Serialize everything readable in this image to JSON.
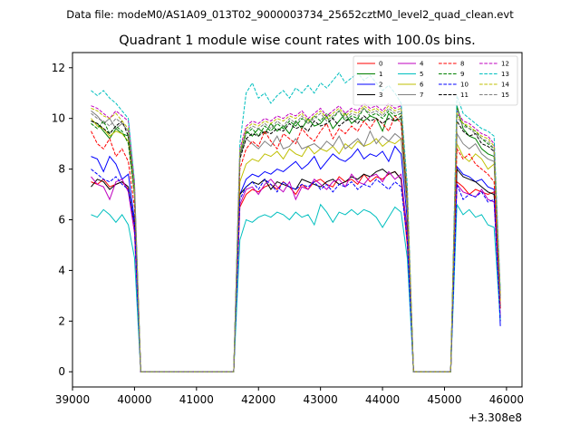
{
  "suptitle": "Data file: modeM0/AS1A09_013T02_9000003734_25652cztM0_level2_quad_clean.evt",
  "chart_data": {
    "type": "line",
    "title": "Quadrant 1 module wise count rates with 100.0s bins.",
    "xlabel": "",
    "ylabel": "",
    "x_offset_label": "+3.308e8",
    "xlim": [
      39000,
      46250
    ],
    "ylim": [
      -0.6,
      12.6
    ],
    "x_ticks": [
      39000,
      40000,
      41000,
      42000,
      43000,
      44000,
      45000,
      46000
    ],
    "y_ticks": [
      0,
      2,
      4,
      6,
      8,
      10,
      12
    ],
    "grid": false,
    "legend": "top-right",
    "legend_columns": 4,
    "x": [
      39300,
      39400,
      39500,
      39600,
      39700,
      39800,
      39900,
      40000,
      40100,
      40200,
      40300,
      40400,
      40500,
      40600,
      40700,
      40800,
      40900,
      41000,
      41100,
      41200,
      41300,
      41400,
      41500,
      41600,
      41700,
      41800,
      41900,
      42000,
      42100,
      42200,
      42300,
      42400,
      42500,
      42600,
      42700,
      42800,
      42900,
      43000,
      43100,
      43200,
      43300,
      43400,
      43500,
      43600,
      43700,
      43800,
      43900,
      44000,
      44100,
      44200,
      44300,
      44400,
      44500,
      44600,
      44700,
      44800,
      44900,
      45000,
      45100,
      45200,
      45300,
      45400,
      45500,
      45600,
      45700,
      45800,
      45900
    ],
    "series": [
      {
        "name": "0",
        "color": "#ff0000",
        "dash": "solid",
        "values": [
          7.5,
          7.4,
          7.6,
          7.3,
          7.4,
          7.5,
          7.2,
          5.5,
          0,
          0,
          0,
          0,
          0,
          0,
          0,
          0,
          0,
          0,
          0,
          0,
          0,
          0,
          0,
          0,
          6.5,
          7.0,
          7.2,
          7.1,
          7.3,
          7.4,
          7.2,
          7.5,
          7.3,
          7.0,
          7.4,
          7.2,
          7.5,
          7.6,
          7.4,
          7.3,
          7.7,
          7.5,
          7.6,
          7.4,
          7.8,
          7.5,
          7.7,
          7.6,
          7.8,
          7.9,
          7.6,
          5.0,
          0,
          0,
          0,
          0,
          0,
          0,
          0,
          7.5,
          7.3,
          7.0,
          7.2,
          7.1,
          7.0,
          7.1,
          2.0
        ]
      },
      {
        "name": "1",
        "color": "#008000",
        "dash": "solid",
        "values": [
          9.9,
          9.8,
          9.5,
          9.2,
          9.6,
          9.4,
          9.3,
          7.0,
          0,
          0,
          0,
          0,
          0,
          0,
          0,
          0,
          0,
          0,
          0,
          0,
          0,
          0,
          0,
          0,
          8.5,
          9.5,
          9.3,
          9.6,
          9.4,
          9.8,
          9.5,
          9.7,
          9.4,
          9.9,
          9.6,
          10.0,
          9.7,
          9.8,
          10.1,
          9.6,
          9.9,
          10.2,
          9.8,
          10.0,
          9.9,
          10.1,
          10.0,
          9.5,
          10.2,
          9.9,
          10.0,
          6.5,
          0,
          0,
          0,
          0,
          0,
          0,
          0,
          10.5,
          9.6,
          9.3,
          9.2,
          8.8,
          8.6,
          8.5,
          3.0
        ]
      },
      {
        "name": "2",
        "color": "#0000ff",
        "dash": "solid",
        "values": [
          8.5,
          8.4,
          7.9,
          8.5,
          8.2,
          7.6,
          7.8,
          6.0,
          0,
          0,
          0,
          0,
          0,
          0,
          0,
          0,
          0,
          0,
          0,
          0,
          0,
          0,
          0,
          0,
          7.0,
          7.6,
          7.8,
          7.7,
          7.9,
          7.8,
          8.0,
          7.9,
          8.1,
          8.3,
          8.0,
          8.2,
          8.5,
          8.0,
          8.3,
          8.6,
          8.4,
          8.3,
          8.5,
          8.8,
          8.4,
          8.6,
          8.5,
          8.7,
          8.3,
          8.9,
          8.6,
          6.0,
          0,
          0,
          0,
          0,
          0,
          0,
          0,
          8.1,
          7.8,
          7.7,
          7.5,
          7.6,
          7.3,
          7.2,
          1.8
        ]
      },
      {
        "name": "3",
        "color": "#000000",
        "dash": "solid",
        "values": [
          7.3,
          7.6,
          7.5,
          7.2,
          7.4,
          7.5,
          7.3,
          5.8,
          0,
          0,
          0,
          0,
          0,
          0,
          0,
          0,
          0,
          0,
          0,
          0,
          0,
          0,
          0,
          0,
          7.0,
          7.3,
          7.5,
          7.4,
          7.6,
          7.2,
          7.5,
          7.4,
          7.3,
          7.2,
          7.6,
          7.5,
          7.4,
          7.3,
          7.5,
          7.6,
          7.4,
          7.5,
          7.7,
          7.6,
          7.8,
          7.7,
          7.9,
          8.0,
          7.8,
          7.9,
          7.6,
          5.6,
          0,
          0,
          0,
          0,
          0,
          0,
          0,
          8.0,
          7.7,
          7.6,
          7.5,
          7.3,
          7.1,
          7.0,
          2.5
        ]
      },
      {
        "name": "4",
        "color": "#bf00bf",
        "dash": "solid",
        "values": [
          7.7,
          7.4,
          7.3,
          6.8,
          7.5,
          7.6,
          7.1,
          5.5,
          0,
          0,
          0,
          0,
          0,
          0,
          0,
          0,
          0,
          0,
          0,
          0,
          0,
          0,
          0,
          0,
          6.6,
          7.2,
          7.3,
          7.0,
          7.4,
          7.6,
          7.3,
          7.1,
          7.5,
          6.8,
          7.3,
          7.2,
          7.6,
          7.4,
          7.2,
          7.5,
          7.6,
          7.3,
          7.8,
          7.5,
          7.4,
          7.7,
          7.8,
          7.5,
          7.9,
          7.6,
          7.8,
          5.4,
          0,
          0,
          0,
          0,
          0,
          0,
          0,
          7.4,
          7.1,
          7.0,
          6.9,
          7.2,
          6.8,
          6.7,
          2.2
        ]
      },
      {
        "name": "5",
        "color": "#00bfbf",
        "dash": "solid",
        "values": [
          6.2,
          6.1,
          6.4,
          6.2,
          5.9,
          6.2,
          5.8,
          4.5,
          0,
          0,
          0,
          0,
          0,
          0,
          0,
          0,
          0,
          0,
          0,
          0,
          0,
          0,
          0,
          0,
          5.2,
          6.0,
          5.9,
          6.1,
          6.2,
          6.1,
          6.3,
          6.2,
          6.0,
          6.3,
          6.1,
          6.2,
          5.8,
          6.6,
          6.3,
          5.9,
          6.3,
          6.2,
          6.4,
          6.2,
          6.4,
          6.3,
          6.1,
          5.7,
          6.1,
          6.5,
          6.3,
          4.5,
          0,
          0,
          0,
          0,
          0,
          0,
          0,
          6.6,
          6.2,
          6.4,
          6.1,
          6.2,
          5.8,
          5.7,
          2.0
        ]
      },
      {
        "name": "6",
        "color": "#bfbf00",
        "dash": "solid",
        "values": [
          10.0,
          9.7,
          9.6,
          9.3,
          9.5,
          9.4,
          9.1,
          7.0,
          0,
          0,
          0,
          0,
          0,
          0,
          0,
          0,
          0,
          0,
          0,
          0,
          0,
          0,
          0,
          0,
          7.5,
          8.2,
          8.4,
          8.3,
          8.6,
          8.5,
          8.7,
          8.4,
          8.8,
          8.6,
          8.5,
          8.9,
          8.6,
          8.8,
          8.7,
          8.9,
          8.6,
          9.0,
          8.8,
          9.1,
          8.9,
          9.0,
          9.2,
          8.9,
          9.1,
          9.0,
          9.2,
          6.4,
          0,
          0,
          0,
          0,
          0,
          0,
          0,
          9.0,
          8.5,
          8.3,
          8.6,
          8.4,
          8.0,
          8.2,
          2.8
        ]
      },
      {
        "name": "7",
        "color": "#808080",
        "dash": "solid",
        "values": [
          10.3,
          10.1,
          9.8,
          10.0,
          9.6,
          9.8,
          9.5,
          7.2,
          0,
          0,
          0,
          0,
          0,
          0,
          0,
          0,
          0,
          0,
          0,
          0,
          0,
          0,
          0,
          0,
          8.5,
          9.2,
          9.0,
          8.8,
          9.1,
          8.9,
          9.3,
          8.8,
          8.9,
          9.2,
          8.8,
          8.9,
          9.0,
          8.8,
          9.1,
          8.9,
          9.3,
          8.8,
          9.0,
          9.2,
          8.9,
          9.5,
          9.0,
          9.3,
          9.1,
          9.4,
          9.2,
          6.5,
          0,
          0,
          0,
          0,
          0,
          0,
          0,
          9.4,
          9.0,
          8.8,
          9.0,
          8.6,
          8.4,
          8.3,
          2.9
        ]
      },
      {
        "name": "8",
        "color": "#ff0000",
        "dash": "dashed",
        "values": [
          9.5,
          9.0,
          8.8,
          9.2,
          8.5,
          8.8,
          8.3,
          6.5,
          0,
          0,
          0,
          0,
          0,
          0,
          0,
          0,
          0,
          0,
          0,
          0,
          0,
          0,
          0,
          0,
          8.0,
          8.8,
          9.1,
          8.9,
          9.5,
          9.1,
          8.8,
          9.4,
          9.2,
          9.0,
          9.6,
          9.3,
          9.1,
          9.5,
          9.8,
          9.2,
          9.6,
          9.4,
          9.7,
          9.5,
          9.9,
          9.6,
          10.0,
          9.8,
          9.5,
          10.1,
          9.8,
          6.8,
          0,
          0,
          0,
          0,
          0,
          0,
          0,
          8.8,
          8.4,
          8.6,
          8.2,
          8.0,
          7.8,
          7.5,
          2.5
        ]
      },
      {
        "name": "9",
        "color": "#008000",
        "dash": "dashed",
        "values": [
          9.8,
          9.6,
          9.9,
          9.4,
          9.7,
          9.5,
          9.0,
          7.0,
          0,
          0,
          0,
          0,
          0,
          0,
          0,
          0,
          0,
          0,
          0,
          0,
          0,
          0,
          0,
          0,
          8.6,
          9.4,
          9.6,
          9.3,
          9.7,
          9.5,
          9.8,
          9.6,
          9.9,
          9.7,
          10.0,
          9.8,
          10.1,
          9.9,
          10.2,
          10.0,
          10.3,
          9.9,
          10.1,
          10.0,
          10.4,
          10.1,
          10.2,
          10.0,
          10.3,
          10.1,
          10.2,
          7.0,
          0,
          0,
          0,
          0,
          0,
          0,
          0,
          10.2,
          9.8,
          9.6,
          9.5,
          9.2,
          9.0,
          8.8,
          3.0
        ]
      },
      {
        "name": "10",
        "color": "#0000ff",
        "dash": "dashed",
        "values": [
          8.0,
          7.8,
          7.6,
          7.5,
          7.7,
          7.4,
          7.2,
          5.8,
          0,
          0,
          0,
          0,
          0,
          0,
          0,
          0,
          0,
          0,
          0,
          0,
          0,
          0,
          0,
          0,
          6.8,
          7.3,
          7.5,
          7.2,
          7.6,
          7.4,
          7.1,
          7.5,
          7.3,
          7.2,
          7.4,
          7.3,
          7.5,
          7.2,
          7.4,
          7.1,
          7.4,
          7.3,
          7.5,
          7.2,
          7.4,
          7.3,
          7.6,
          7.4,
          7.2,
          7.5,
          7.3,
          5.2,
          0,
          0,
          0,
          0,
          0,
          0,
          0,
          7.4,
          6.8,
          7.0,
          6.9,
          7.1,
          6.7,
          6.8,
          2.0
        ]
      },
      {
        "name": "11",
        "color": "#000000",
        "dash": "dashed",
        "values": [
          9.9,
          9.8,
          9.6,
          9.4,
          9.7,
          9.9,
          9.3,
          7.2,
          0,
          0,
          0,
          0,
          0,
          0,
          0,
          0,
          0,
          0,
          0,
          0,
          0,
          0,
          0,
          0,
          8.4,
          9.2,
          9.4,
          9.3,
          9.5,
          9.4,
          9.6,
          9.5,
          9.8,
          9.6,
          9.7,
          9.5,
          9.9,
          9.7,
          9.8,
          10.0,
          9.7,
          9.9,
          10.0,
          9.8,
          10.1,
          9.9,
          10.0,
          9.8,
          10.0,
          9.9,
          10.1,
          6.9,
          0,
          0,
          0,
          0,
          0,
          0,
          0,
          9.9,
          9.5,
          9.3,
          9.4,
          9.0,
          8.9,
          8.7,
          3.0
        ]
      },
      {
        "name": "12",
        "color": "#bf00bf",
        "dash": "dashed",
        "values": [
          10.5,
          10.4,
          10.2,
          10.0,
          10.3,
          10.1,
          9.9,
          7.5,
          0,
          0,
          0,
          0,
          0,
          0,
          0,
          0,
          0,
          0,
          0,
          0,
          0,
          0,
          0,
          0,
          8.8,
          9.7,
          9.9,
          9.8,
          10.0,
          9.9,
          10.1,
          10.0,
          10.2,
          10.1,
          10.3,
          10.0,
          10.2,
          10.4,
          10.1,
          10.3,
          10.5,
          10.2,
          10.4,
          10.3,
          10.6,
          10.4,
          10.5,
          10.3,
          10.6,
          10.4,
          10.5,
          7.2,
          0,
          0,
          0,
          0,
          0,
          0,
          0,
          10.3,
          9.9,
          9.8,
          9.6,
          9.4,
          9.3,
          9.0,
          3.1
        ]
      },
      {
        "name": "13",
        "color": "#00bfbf",
        "dash": "dashed",
        "values": [
          11.1,
          10.9,
          11.1,
          10.8,
          10.6,
          10.3,
          10.0,
          7.5,
          0,
          0,
          0,
          0,
          0,
          0,
          0,
          0,
          0,
          0,
          0,
          0,
          0,
          0,
          0,
          0,
          9.0,
          11.0,
          11.4,
          10.8,
          11.0,
          10.6,
          10.9,
          11.1,
          10.8,
          11.2,
          11.0,
          11.3,
          11.0,
          11.4,
          11.2,
          11.5,
          11.8,
          11.4,
          11.6,
          11.8,
          11.5,
          11.7,
          11.4,
          11.1,
          11.3,
          11.0,
          10.6,
          7.4,
          0,
          0,
          0,
          0,
          0,
          0,
          0,
          10.9,
          10.2,
          10.0,
          9.8,
          9.6,
          9.5,
          9.3,
          3.2
        ]
      },
      {
        "name": "14",
        "color": "#bfbf00",
        "dash": "dashed",
        "values": [
          10.4,
          10.3,
          10.1,
          10.0,
          10.2,
          9.9,
          9.6,
          7.3,
          0,
          0,
          0,
          0,
          0,
          0,
          0,
          0,
          0,
          0,
          0,
          0,
          0,
          0,
          0,
          0,
          8.7,
          9.6,
          9.8,
          9.7,
          9.9,
          9.8,
          10.0,
          9.9,
          10.1,
          10.0,
          10.2,
          9.9,
          10.1,
          10.3,
          10.0,
          10.2,
          10.4,
          10.1,
          10.3,
          10.2,
          10.5,
          10.3,
          10.4,
          10.2,
          10.5,
          10.3,
          10.4,
          7.1,
          0,
          0,
          0,
          0,
          0,
          0,
          0,
          10.2,
          9.8,
          9.7,
          9.5,
          9.3,
          9.2,
          8.9,
          3.0
        ]
      },
      {
        "name": "15",
        "color": "#808080",
        "dash": "dashed",
        "values": [
          10.2,
          10.0,
          9.9,
          9.7,
          10.0,
          9.8,
          9.5,
          7.2,
          0,
          0,
          0,
          0,
          0,
          0,
          0,
          0,
          0,
          0,
          0,
          0,
          0,
          0,
          0,
          0,
          8.6,
          9.5,
          9.7,
          9.6,
          9.8,
          9.6,
          9.9,
          9.7,
          10.0,
          9.8,
          10.1,
          9.8,
          10.0,
          10.2,
          9.9,
          10.1,
          10.3,
          10.0,
          10.2,
          10.1,
          10.4,
          10.2,
          10.3,
          10.1,
          10.4,
          10.2,
          10.3,
          7.0,
          0,
          0,
          0,
          0,
          0,
          0,
          0,
          10.1,
          9.7,
          9.6,
          9.4,
          9.2,
          9.1,
          8.8,
          2.9
        ]
      }
    ]
  }
}
